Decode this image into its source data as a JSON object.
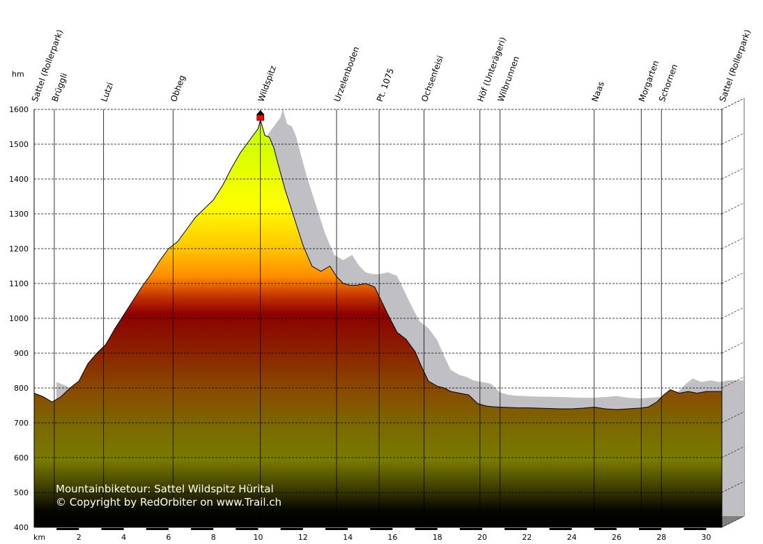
{
  "chart_data": {
    "type": "area",
    "title": "Mountainbiketour: Sattel Wildspitz Hürital",
    "copyright": "© Copyright by RedOrbiter on www.Trail.ch",
    "xlabel": "km",
    "ylabel": "hm",
    "xlim": [
      0,
      30.7
    ],
    "ylim": [
      400,
      1600
    ],
    "x_ticks": [
      2,
      4,
      6,
      8,
      10,
      12,
      14,
      16,
      18,
      20,
      22,
      24,
      26,
      28,
      30
    ],
    "y_ticks": [
      400,
      500,
      600,
      700,
      800,
      900,
      1000,
      1100,
      1200,
      1300,
      1400,
      1500,
      1600
    ],
    "grid": true,
    "summit_marker": {
      "x": 10.1,
      "y": 1580,
      "color": "#ff0000"
    },
    "series": [
      {
        "x": [
          0,
          0.4,
          0.8,
          1.2,
          1.6,
          2.0,
          2.4,
          2.8,
          3.2,
          3.6,
          4.0,
          4.4,
          4.8,
          5.2,
          5.6,
          6.0,
          6.4,
          6.8,
          7.2,
          7.6,
          8.0,
          8.4,
          8.8,
          9.2,
          9.6,
          10.0,
          10.1,
          10.3,
          10.5,
          10.7,
          10.9,
          11.2,
          11.6,
          12.0,
          12.4,
          12.8,
          13.2,
          13.5,
          13.8,
          14.1,
          14.4,
          14.8,
          15.2,
          15.5,
          15.8,
          16.2,
          16.6,
          17.0,
          17.3,
          17.6,
          18.0,
          18.3,
          18.6,
          19.0,
          19.4,
          19.8,
          20.2,
          20.5,
          20.8,
          21.2,
          21.6,
          22.0,
          22.5,
          23.0,
          23.5,
          24.0,
          24.5,
          25.0,
          25.5,
          26.0,
          26.5,
          27.0,
          27.4,
          27.8,
          28.1,
          28.4,
          28.8,
          29.2,
          29.6,
          30.0,
          30.5,
          30.7
        ],
        "y": [
          785,
          775,
          760,
          775,
          800,
          820,
          870,
          900,
          925,
          970,
          1010,
          1050,
          1090,
          1125,
          1165,
          1200,
          1220,
          1255,
          1290,
          1315,
          1340,
          1380,
          1430,
          1475,
          1510,
          1545,
          1570,
          1525,
          1520,
          1490,
          1440,
          1370,
          1290,
          1210,
          1150,
          1135,
          1150,
          1120,
          1100,
          1095,
          1095,
          1100,
          1090,
          1050,
          1010,
          960,
          940,
          905,
          860,
          820,
          805,
          800,
          790,
          785,
          780,
          755,
          748,
          746,
          745,
          744,
          743,
          743,
          742,
          741,
          740,
          740,
          742,
          745,
          740,
          738,
          740,
          742,
          745,
          760,
          780,
          795,
          785,
          790,
          785,
          790,
          790,
          790
        ]
      }
    ],
    "waypoints": [
      {
        "label": "Sattel (Rollerpark)",
        "x": 0.0
      },
      {
        "label": "Brüggli",
        "x": 0.9
      },
      {
        "label": "Lutzi",
        "x": 3.1
      },
      {
        "label": "Obheg",
        "x": 6.2
      },
      {
        "label": "Wildspitz",
        "x": 10.1
      },
      {
        "label": "Urzelenboden",
        "x": 13.5
      },
      {
        "label": "Pt. 1075",
        "x": 15.4
      },
      {
        "label": "Ochsenfeisi",
        "x": 17.4
      },
      {
        "label": "Höf (Unterägeri)",
        "x": 19.9
      },
      {
        "label": "Wilbrunnen",
        "x": 20.8
      },
      {
        "label": "Naas",
        "x": 25.0
      },
      {
        "label": "Morgarten",
        "x": 27.1
      },
      {
        "label": "Schornen",
        "x": 28.0
      },
      {
        "label": "Sattel (Rollerpark)",
        "x": 30.7
      }
    ],
    "colors": {
      "shadow": "#c0bfc4",
      "base_dark": "#000000",
      "olive": "#7a7a00",
      "brown": "#8b3a00",
      "dark_red": "#8c0000",
      "orange": "#ff8c00",
      "yellow": "#ffff00",
      "lime": "#c0ff00",
      "side_wall": "#808080"
    }
  }
}
